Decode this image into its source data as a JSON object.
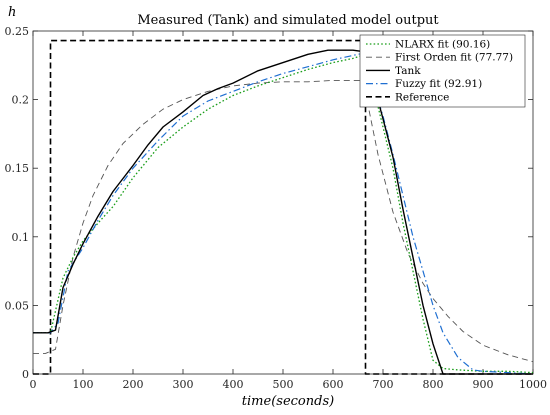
{
  "chart_data": {
    "type": "line",
    "title": "Measured (Tank) and simulated model output",
    "xlabel": "time(seconds)",
    "ylabel": "h",
    "xlim": [
      0,
      1000
    ],
    "ylim": [
      0,
      0.25
    ],
    "xticks": [
      0,
      100,
      200,
      300,
      400,
      500,
      600,
      700,
      800,
      900,
      1000
    ],
    "yticks": [
      0,
      0.05,
      0.1,
      0.15,
      0.2,
      0.25
    ],
    "xtick_labels": [
      "0",
      "100",
      "200",
      "300",
      "400",
      "500",
      "600",
      "700",
      "800",
      "900",
      "1000"
    ],
    "ytick_labels": [
      "0",
      "0.05",
      "0.1",
      "0.15",
      "0.2",
      "0.25"
    ],
    "grid": false,
    "legend_position": "top-right",
    "series": [
      {
        "name": "NLARX fit (90.16)",
        "color": "#1a9e1a",
        "style": "dotted",
        "x": [
          0,
          35,
          60,
          80,
          100,
          130,
          160,
          200,
          250,
          300,
          350,
          400,
          450,
          500,
          550,
          600,
          640,
          665,
          680,
          700,
          720,
          740,
          760,
          780,
          800,
          820,
          850,
          900,
          950,
          1000
        ],
        "y": [
          0.03,
          0.03,
          0.07,
          0.085,
          0.097,
          0.11,
          0.122,
          0.143,
          0.165,
          0.18,
          0.193,
          0.203,
          0.21,
          0.216,
          0.222,
          0.227,
          0.23,
          0.233,
          0.21,
          0.18,
          0.15,
          0.11,
          0.075,
          0.04,
          0.01,
          0.004,
          0.003,
          0.002,
          0.002,
          0.001
        ]
      },
      {
        "name": "First Orden fit (77.77)",
        "color": "#555555",
        "style": "dashed",
        "x": [
          0,
          25,
          45,
          60,
          80,
          100,
          120,
          150,
          180,
          220,
          260,
          300,
          350,
          400,
          450,
          500,
          550,
          600,
          660,
          690,
          720,
          750,
          780,
          800,
          830,
          860,
          900,
          950,
          1000
        ],
        "y": [
          0.015,
          0.015,
          0.018,
          0.05,
          0.085,
          0.11,
          0.13,
          0.152,
          0.168,
          0.182,
          0.193,
          0.2,
          0.206,
          0.21,
          0.212,
          0.213,
          0.213,
          0.214,
          0.214,
          0.16,
          0.118,
          0.088,
          0.066,
          0.055,
          0.042,
          0.031,
          0.021,
          0.014,
          0.009
        ]
      },
      {
        "name": "Tank",
        "color": "#000000",
        "style": "solid",
        "x": [
          0,
          30,
          45,
          60,
          80,
          100,
          130,
          160,
          200,
          230,
          260,
          300,
          340,
          370,
          400,
          450,
          500,
          550,
          590,
          640,
          660,
          680,
          700,
          720,
          740,
          760,
          780,
          800,
          820,
          850,
          900,
          950,
          1000
        ],
        "y": [
          0.03,
          0.03,
          0.032,
          0.063,
          0.08,
          0.095,
          0.115,
          0.133,
          0.152,
          0.167,
          0.18,
          0.191,
          0.203,
          0.208,
          0.212,
          0.221,
          0.227,
          0.233,
          0.236,
          0.236,
          0.235,
          0.213,
          0.186,
          0.158,
          0.12,
          0.085,
          0.05,
          0.022,
          0.0,
          0.0,
          0.0,
          0.0,
          0.0
        ]
      },
      {
        "name": "Fuzzy fit (92.91)",
        "color": "#1f6fd1",
        "style": "dashdot",
        "x": [
          0,
          35,
          50,
          70,
          100,
          130,
          160,
          200,
          250,
          300,
          350,
          400,
          450,
          500,
          550,
          600,
          650,
          665,
          680,
          700,
          720,
          740,
          760,
          780,
          800,
          820,
          850,
          880,
          900,
          1000
        ],
        "y": [
          0.03,
          0.03,
          0.037,
          0.075,
          0.092,
          0.112,
          0.13,
          0.15,
          0.17,
          0.188,
          0.199,
          0.206,
          0.213,
          0.219,
          0.224,
          0.229,
          0.233,
          0.234,
          0.212,
          0.188,
          0.16,
          0.13,
          0.1,
          0.075,
          0.05,
          0.03,
          0.012,
          0.003,
          0.002,
          0.0
        ]
      },
      {
        "name": "Reference",
        "color": "#000000",
        "style": "dashed-bold",
        "x": [
          0,
          35,
          35,
          665,
          665,
          1000
        ],
        "y": [
          0.0,
          0.0,
          0.243,
          0.243,
          0.0,
          0.0
        ]
      }
    ]
  }
}
